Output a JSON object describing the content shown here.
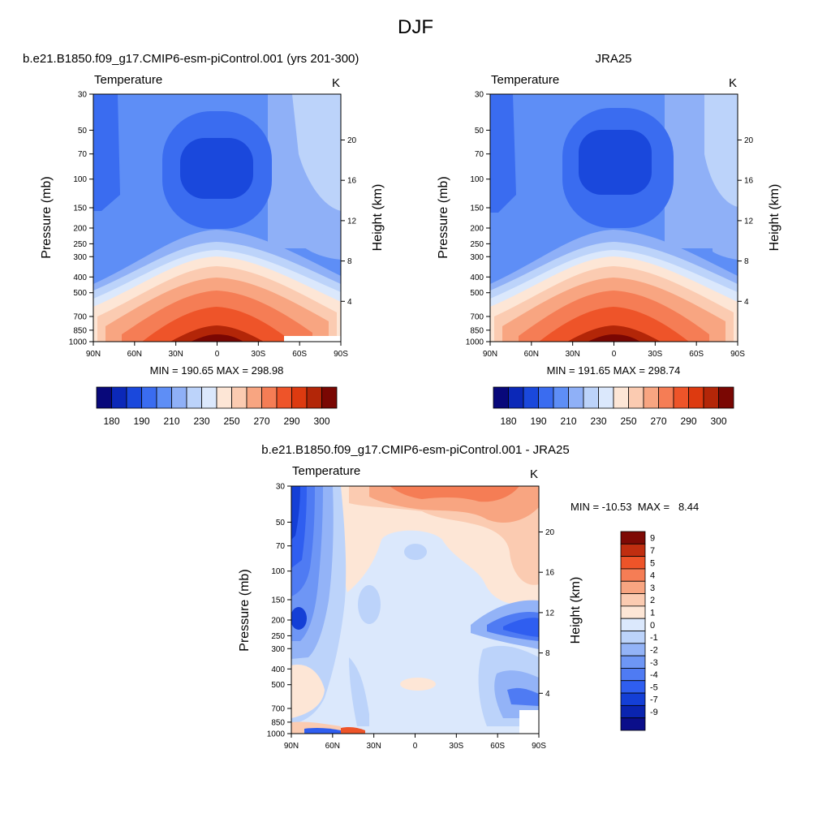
{
  "page": {
    "title": "DJF"
  },
  "colors": {
    "model_obs_scale": [
      "#08087a",
      "#0b28b8",
      "#1a48dc",
      "#3a6cf0",
      "#5e8ef6",
      "#8fb0f7",
      "#bcd3fa",
      "#dbe8fc",
      "#fde6d6",
      "#fbcbb1",
      "#f8a581",
      "#f57d55",
      "#ee5429",
      "#dd3a10",
      "#b32608",
      "#7a0703"
    ],
    "diff_scale": [
      "#0b0e8a",
      "#0a24b0",
      "#143fd6",
      "#2f5ef0",
      "#4f7bf3",
      "#6e96f5",
      "#93b3f7",
      "#bcd3fa",
      "#dbe8fc",
      "#fde6d6",
      "#fbcbb1",
      "#f8a581",
      "#f57d55",
      "#ee5429",
      "#c02e10",
      "#7e0a05"
    ]
  },
  "chart_data": [
    {
      "type": "heatmap",
      "id": "model",
      "title": "b.e21.B1850.f09_g17.CMIP6-esm-piControl.001 (yrs 201-300)",
      "variable": "Temperature",
      "units": "K",
      "xlabel": "",
      "ylabel": "Pressure (mb)",
      "y2label": "Height (km)",
      "x_ticks": [
        "90N",
        "60N",
        "30N",
        "0",
        "30S",
        "60S",
        "90S"
      ],
      "y_ticks": [
        30,
        50,
        70,
        100,
        150,
        200,
        250,
        300,
        400,
        500,
        700,
        850,
        1000
      ],
      "y2_ticks": [
        20,
        16,
        12,
        8,
        4
      ],
      "stats_text": "MIN = 190.65  MAX = 298.98",
      "min": 190.65,
      "max": 298.98,
      "levels": [
        175,
        180,
        185,
        190,
        200,
        210,
        220,
        230,
        240,
        250,
        260,
        270,
        280,
        290,
        295,
        300
      ],
      "colorbar_labels": [
        "180",
        "190",
        "210",
        "230",
        "250",
        "270",
        "290",
        "300"
      ],
      "colorbar_orientation": "horizontal"
    },
    {
      "type": "heatmap",
      "id": "obs",
      "title": "JRA25",
      "variable": "Temperature",
      "units": "K",
      "xlabel": "",
      "ylabel": "Pressure (mb)",
      "y2label": "Height (km)",
      "x_ticks": [
        "90N",
        "60N",
        "30N",
        "0",
        "30S",
        "60S",
        "90S"
      ],
      "y_ticks": [
        30,
        50,
        70,
        100,
        150,
        200,
        250,
        300,
        400,
        500,
        700,
        850,
        1000
      ],
      "y2_ticks": [
        20,
        16,
        12,
        8,
        4
      ],
      "stats_text": "MIN = 191.65  MAX = 298.74",
      "min": 191.65,
      "max": 298.74,
      "levels": [
        175,
        180,
        185,
        190,
        200,
        210,
        220,
        230,
        240,
        250,
        260,
        270,
        280,
        290,
        295,
        300
      ],
      "colorbar_labels": [
        "180",
        "190",
        "210",
        "230",
        "250",
        "270",
        "290",
        "300"
      ],
      "colorbar_orientation": "horizontal"
    },
    {
      "type": "heatmap",
      "id": "diff",
      "title": "b.e21.B1850.f09_g17.CMIP6-esm-piControl.001 - JRA25",
      "variable": "Temperature",
      "units": "K",
      "xlabel": "",
      "ylabel": "Pressure (mb)",
      "y2label": "Height (km)",
      "x_ticks": [
        "90N",
        "60N",
        "30N",
        "0",
        "30S",
        "60S",
        "90S"
      ],
      "y_ticks": [
        30,
        50,
        70,
        100,
        150,
        200,
        250,
        300,
        400,
        500,
        700,
        850,
        1000
      ],
      "y2_ticks": [
        20,
        16,
        12,
        8,
        4
      ],
      "stats_text": "MIN = -10.53  MAX =   8.44",
      "min": -10.53,
      "max": 8.44,
      "levels": [
        -9,
        -7,
        -5,
        -4,
        -3,
        -2,
        -1,
        0,
        1,
        2,
        3,
        4,
        5,
        7,
        9
      ],
      "colorbar_labels": [
        "9",
        "7",
        "5",
        "4",
        "3",
        "2",
        "1",
        "0",
        "-1",
        "-2",
        "-3",
        "-4",
        "-5",
        "-7",
        "-9"
      ],
      "colorbar_orientation": "vertical"
    }
  ]
}
